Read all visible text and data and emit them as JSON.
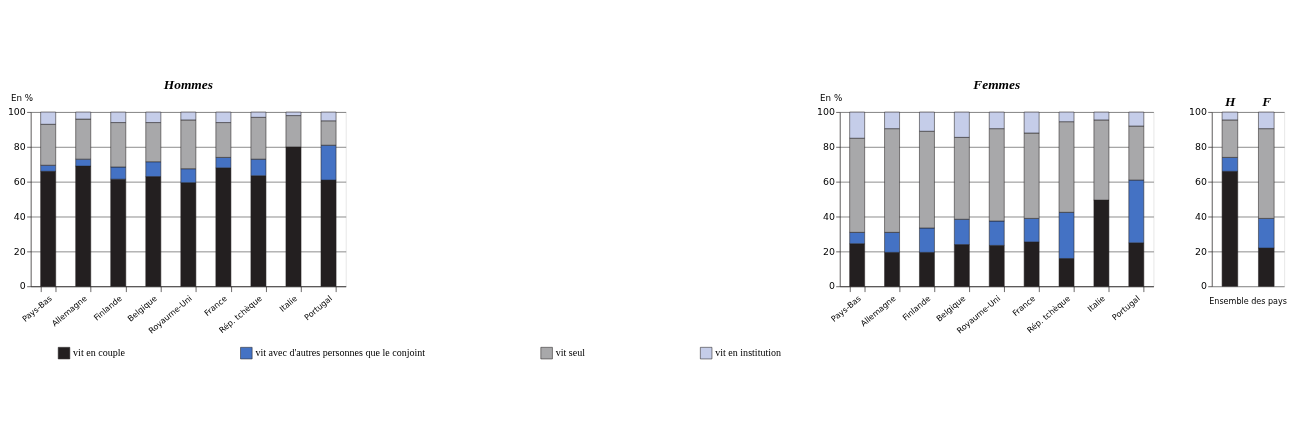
{
  "chart_data": [
    {
      "type": "bar",
      "title": "Hommes",
      "ylabel": "En %",
      "stacked": true,
      "grid": "y",
      "legend": "bottom",
      "ylim": [
        0,
        100
      ],
      "yticks": [
        0,
        20,
        40,
        60,
        80,
        100
      ],
      "categories": [
        "Pays-Bas",
        "Allemagne",
        "Finlande",
        "Belgique",
        "Royaume-Uni",
        "France",
        "Rép. tchèque",
        "Italie",
        "Portugal"
      ],
      "series": [
        {
          "name": "vit en couple",
          "color": "#231f20",
          "values": [
            66,
            69,
            61.5,
            63,
            59.5,
            68,
            63.5,
            80,
            61
          ]
        },
        {
          "name": "vit avec d'autres personnes que le conjoint",
          "color": "#4472c4",
          "values": [
            3.5,
            4,
            7,
            8.5,
            8,
            6,
            9.5,
            0,
            20
          ]
        },
        {
          "name": "vit seul",
          "color": "#a8a8aa",
          "values": [
            23.5,
            23,
            25.5,
            22.5,
            28,
            20,
            24,
            18,
            14
          ]
        },
        {
          "name": "vit en institution",
          "color": "#c5cde9",
          "values": [
            7,
            4,
            6,
            6,
            4.5,
            6,
            3,
            2,
            5
          ]
        }
      ]
    },
    {
      "type": "bar",
      "title": "Femmes",
      "ylabel": "En %",
      "stacked": true,
      "grid": "y",
      "ylim": [
        0,
        100
      ],
      "yticks": [
        0,
        20,
        40,
        60,
        80,
        100
      ],
      "categories": [
        "Pays-Bas",
        "Allemagne",
        "Finlande",
        "Belgique",
        "Royaume-Uni",
        "France",
        "Rép. tchèque",
        "Italie",
        "Portugal"
      ],
      "series": [
        {
          "color": "#231f20",
          "values": [
            24.5,
            19.5,
            19.5,
            24,
            23.5,
            25.5,
            16,
            49.5,
            25
          ]
        },
        {
          "color": "#4472c4",
          "values": [
            6.5,
            11.5,
            14,
            14.5,
            14,
            13.5,
            26.5,
            0,
            36
          ]
        },
        {
          "color": "#a8a8aa",
          "values": [
            54,
            59.5,
            55.5,
            47,
            53,
            49,
            52,
            46,
            31
          ]
        },
        {
          "color": "#c5cde9",
          "values": [
            15,
            9.5,
            11,
            14.5,
            9.5,
            12,
            5.5,
            4.5,
            8
          ]
        }
      ]
    },
    {
      "type": "bar",
      "xlabel": "Ensemble des pays",
      "stacked": true,
      "grid": "y",
      "ylim": [
        0,
        100
      ],
      "yticks": [
        0,
        20,
        40,
        60,
        80,
        100
      ],
      "categories": [
        "H",
        "F"
      ],
      "series": [
        {
          "color": "#231f20",
          "values": [
            66,
            22
          ]
        },
        {
          "color": "#4472c4",
          "values": [
            8,
            17
          ]
        },
        {
          "color": "#a8a8aa",
          "values": [
            21.5,
            51.5
          ]
        },
        {
          "color": "#c5cde9",
          "values": [
            4.5,
            9.5
          ]
        }
      ]
    }
  ]
}
